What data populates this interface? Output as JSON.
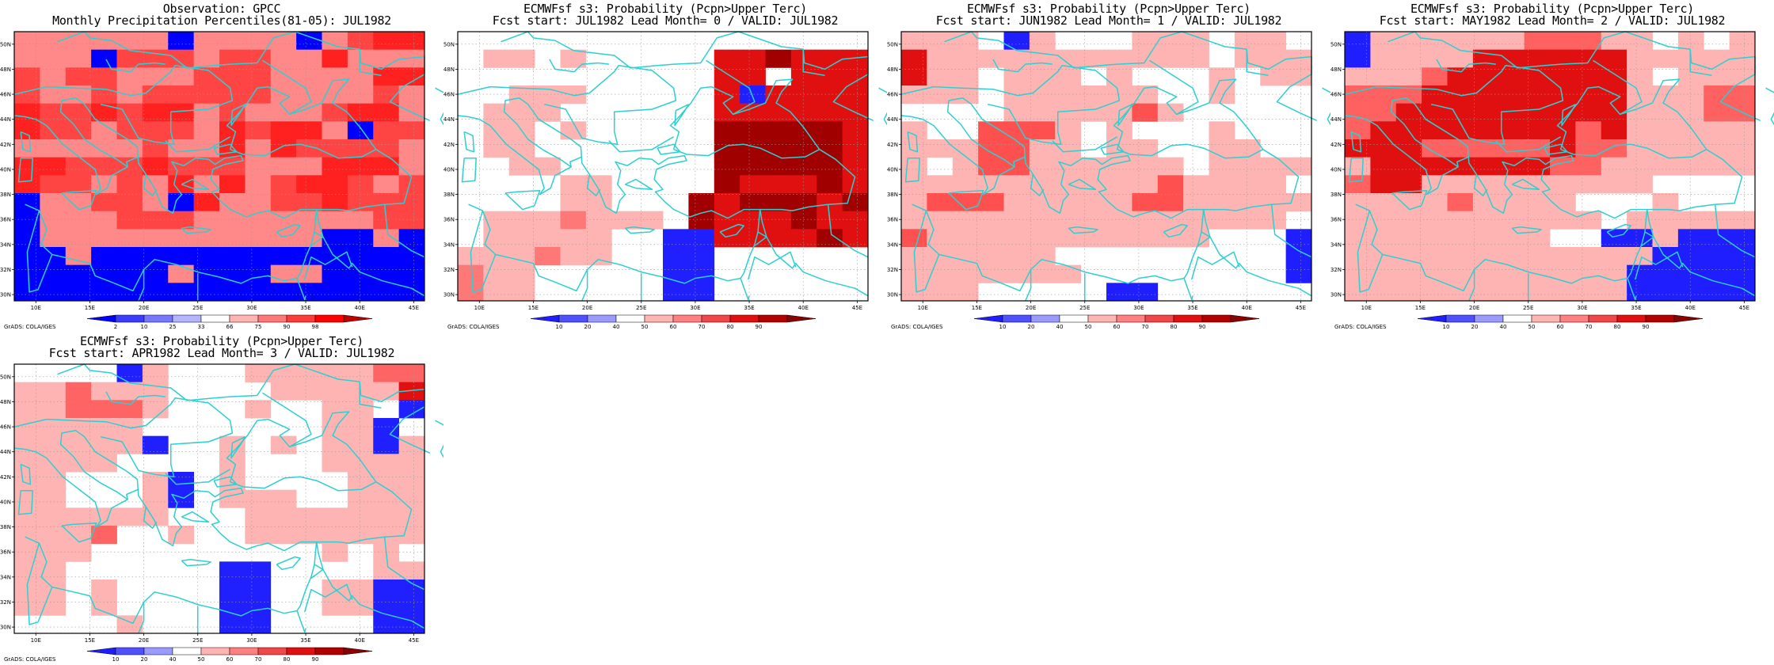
{
  "credit": "GrADS: COLA/IGES",
  "lon_ticks": [
    "10E",
    "15E",
    "20E",
    "25E",
    "30E",
    "35E",
    "40E",
    "45E"
  ],
  "lat_ticks": [
    "30N",
    "32N",
    "34N",
    "36N",
    "38N",
    "40N",
    "42N",
    "44N",
    "46N",
    "48N",
    "50N"
  ],
  "extent": {
    "lon": [
      8,
      46
    ],
    "lat": [
      29.5,
      51
    ]
  },
  "colors": {
    "coast": "#2ecfcf",
    "frame": "#000000",
    "obs_scale": [
      "#0000ff",
      "#3c3cff",
      "#7878ff",
      "#b4b4ff",
      "#ffffff",
      "#ffb4b4",
      "#ff7878",
      "#ff3c3c",
      "#ff0000",
      "#c00000"
    ],
    "prob_scale": [
      "#1e1eff",
      "#5050ff",
      "#9b9bff",
      "#ffffff",
      "#ffb4b4",
      "#ff8080",
      "#f04848",
      "#e01010",
      "#b00000",
      "#8b0000"
    ]
  },
  "panels": [
    {
      "title1": "Observation: GPCC",
      "title2": "Monthly Precipitation Percentiles(81-05): JUL1982",
      "legend_labels": [
        "2",
        "10",
        "25",
        "33",
        "66",
        "75",
        "90",
        "98"
      ],
      "scale": "obs_scale",
      "grid": [
        "1111110111101233",
        "1110222122113111",
        "2122111222111133",
        "2112122222111121",
        "3223233121112331",
        "3221222132331022",
        "1111121131322221",
        "3322232221113331",
        "3221213131233212",
        "0112210311223222",
        "4111222111111122",
        "4111111111110010",
        "4410000000000000",
        "4000001000110000",
        "4000000000000000"
      ],
      "cell_codes": {
        "0": "#0000ff",
        "1": "#ff8888",
        "2": "#ff4444",
        "3": "#ff2020",
        "4": "#0000ff"
      }
    },
    {
      "title1": "ECMWFsf s3: Probability (Pcpn>Upper Terc)",
      "title2": "Fcst start: JUL1982  Lead Month= 0 / VALID: JUL1982",
      "legend_labels": [
        "10",
        "20",
        "40",
        "50",
        "60",
        "70",
        "80",
        "90"
      ],
      "scale": "prob_scale",
      "grid": [
        "0000000000000000",
        "0110100000445444",
        "0000000000446444",
        "0011100000434444",
        "0111000000444444",
        "0110100000555554",
        "0110000000555554",
        "0011000000555554",
        "0000110000544454",
        "0000110005455545",
        "0111211105444544",
        "0111110033444454",
        "1112110033000000",
        "2110000033000000",
        "2110000033000000"
      ],
      "cell_codes": {
        "0": "#ffffff",
        "1": "#ffb4b4",
        "2": "#ff7878",
        "3": "#2020ff",
        "4": "#e01010",
        "5": "#a00000"
      }
    },
    {
      "title1": "ECMWFsf s3: Probability (Pcpn>Upper Terc)",
      "title2": "Fcst start: JUN1982  Lead Month= 1 / VALID: JUL1982",
      "legend_labels": [
        "10",
        "20",
        "40",
        "50",
        "60",
        "70",
        "80",
        "90"
      ],
      "scale": "prob_scale",
      "grid": [
        "1110510001110110",
        "4111111111110111",
        "4110111010001011",
        "1110111111001000",
        "0000111112100000",
        "1002221010001000",
        "1112211011001100",
        "1012211111101111",
        "1111111111211110",
        "1222111112211111",
        "1111111111111110",
        "2111111111110005",
        "1111110000000005",
        "1111111000000005",
        "1110000055000000"
      ],
      "cell_codes": {
        "0": "#ffffff",
        "1": "#ffb4b4",
        "2": "#ff5050",
        "4": "#e01010",
        "5": "#1e1eff"
      }
    },
    {
      "title1": "ECMWFsf s3: Probability (Pcpn>Upper Terc)",
      "title2": "Fcst start: MAY1982  Lead Month= 2 / VALID: JUL1982",
      "legend_labels": [
        "10",
        "20",
        "40",
        "50",
        "60",
        "70",
        "80",
        "90"
      ],
      "scale": "prob_scale",
      "grid": [
        "5111111222110101",
        "5111133333311111",
        "1112333333310111",
        "2223333333311122",
        "2233333333311122",
        "2333333332311111",
        "3332222232211111",
        "1333333322111111",
        "2331111111110000",
        "1111211110001000",
        "1111111111011111",
        "1111111100551555",
        "1111111111115555",
        "1111111111155555",
        "1111111111155555"
      ],
      "cell_codes": {
        "0": "#ffffff",
        "1": "#ffb4b4",
        "2": "#ff6060",
        "3": "#e01010",
        "5": "#1e1eff"
      }
    },
    {
      "title1": "ECMWFsf s3: Probability (Pcpn>Upper Terc)",
      "title2": "Fcst start: APR1982  Lead Month= 3 / VALID: JUL1982",
      "legend_labels": [
        "10",
        "20",
        "40",
        "50",
        "60",
        "70",
        "80",
        "90"
      ],
      "scale": "prob_scale",
      "grid": [
        "0000510001111122",
        "1121110000111116",
        "1122210001001105",
        "1111100000001150",
        "1111150010101151",
        "1111000010001111",
        "1100015010000111",
        "1100015011100111",
        "1111110001111111",
        "1112001001111111",
        "1110000000001010",
        "1100000055000011",
        "1101000055001155",
        "1101000055001155",
        "0000100055000055"
      ],
      "cell_codes": {
        "0": "#ffffff",
        "1": "#ffb4b4",
        "2": "#ff6464",
        "5": "#2020ff",
        "6": "#e01010"
      }
    }
  ]
}
